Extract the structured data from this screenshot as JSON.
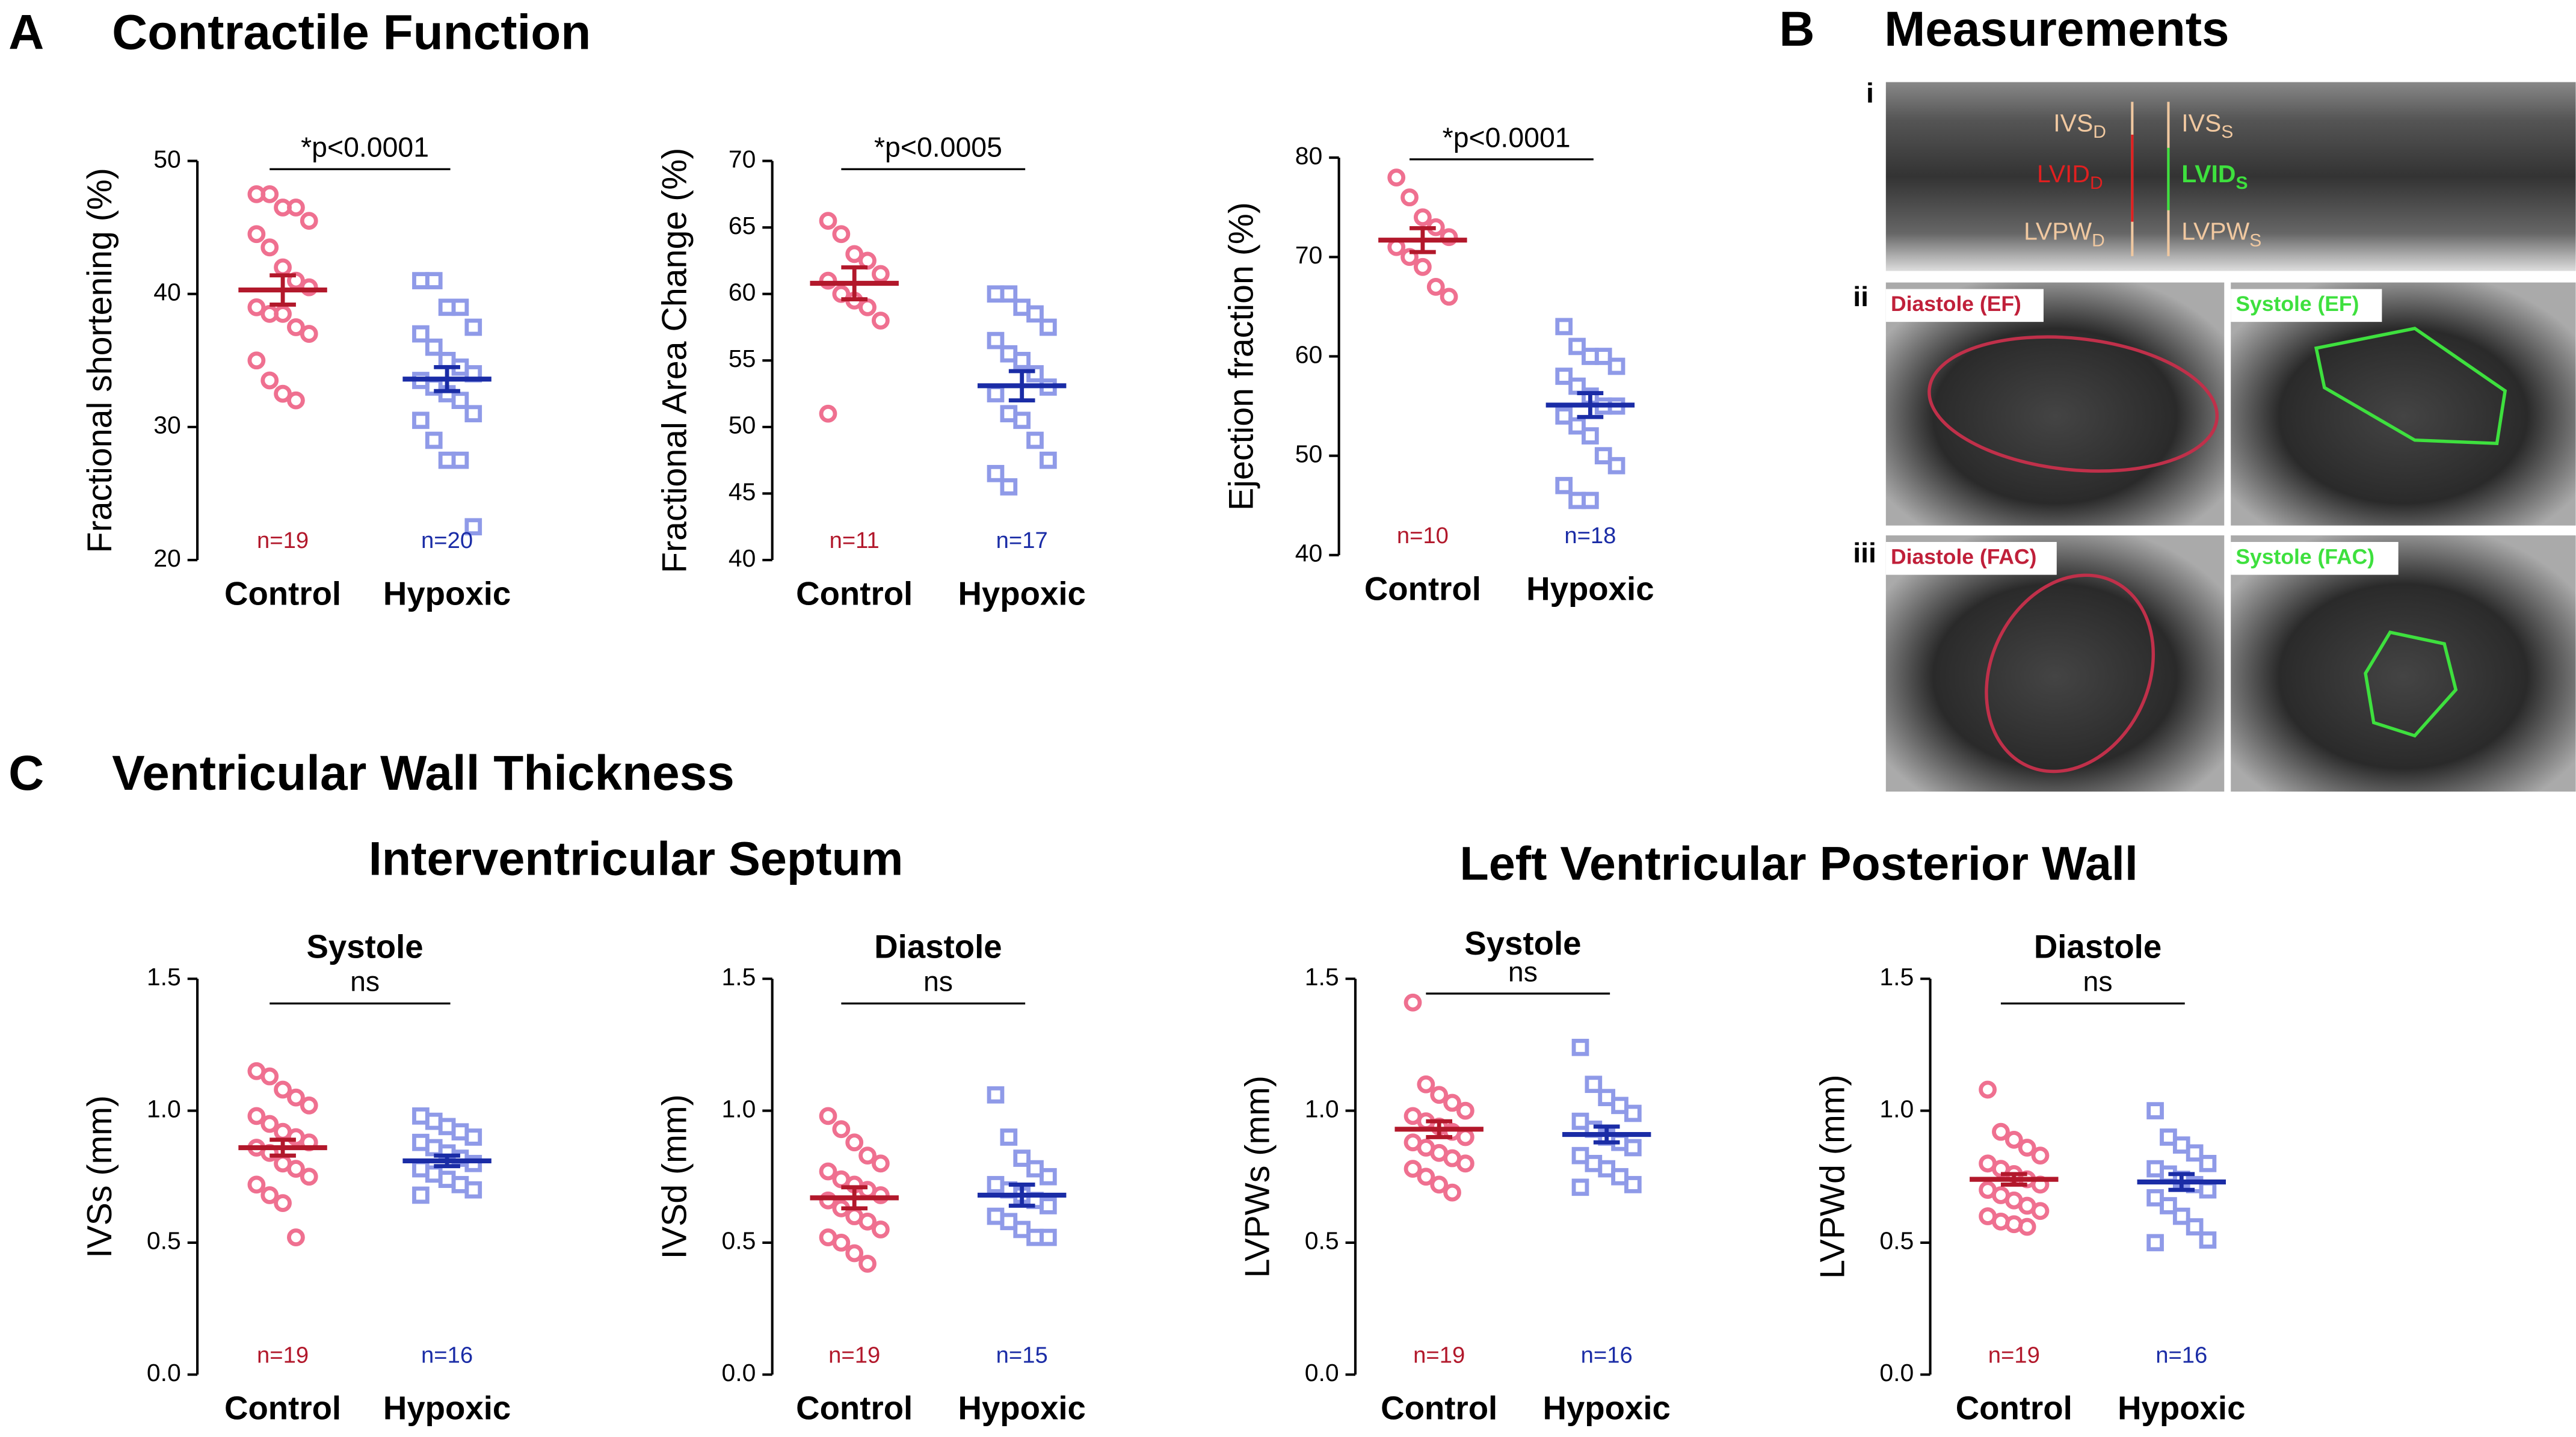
{
  "panels": [
    {
      "letter": "A",
      "title": "Contractile Function"
    },
    {
      "letter": "B",
      "title": "Measurements"
    },
    {
      "letter": "C",
      "title": "Ventricular Wall Thickness"
    }
  ],
  "section_titles": [
    "Interventricular Septum",
    "Left  Ventricular Posterior Wall"
  ],
  "measurements": {
    "roman": [
      "i",
      "ii",
      "iii"
    ],
    "mmode_labels": [
      {
        "text": "IVS",
        "sub": "D"
      },
      {
        "text": "LVID",
        "sub": "D"
      },
      {
        "text": "LVPW",
        "sub": "D"
      },
      {
        "text": "IVS",
        "sub": "S"
      },
      {
        "text": "LVID",
        "sub": "S"
      },
      {
        "text": "LVPW",
        "sub": "S"
      }
    ],
    "image_labels": [
      "Diastole (EF)",
      "Systole (EF)",
      "Diastole (FAC)",
      "Systole (FAC)"
    ]
  },
  "chart_data": [
    {
      "type": "strip",
      "y_label": "Fractional  shortening (%)",
      "annotation": "*p<0.0001",
      "categories": [
        "Control",
        "Hypoxic"
      ],
      "ylim": [
        20,
        50
      ],
      "yticks": [
        20,
        30,
        40,
        50
      ],
      "series": [
        {
          "color": "#ef7090",
          "marker": "circle",
          "mean_color": "#b2182b",
          "n_label": "n=19",
          "mean": 40.3,
          "sem": 1.1,
          "values": [
            47.5,
            47.5,
            46.5,
            46.5,
            45.5,
            44.5,
            43.5,
            42,
            41,
            40.5,
            39,
            38.5,
            38.5,
            37.5,
            37,
            35,
            33.5,
            32.5,
            32
          ]
        },
        {
          "color": "#8f9ae8",
          "marker": "square",
          "mean_color": "#1a2ca6",
          "n_label": "n=20",
          "mean": 33.6,
          "sem": 0.9,
          "values": [
            41,
            41,
            39,
            39,
            37.5,
            37,
            36,
            35,
            34.5,
            34,
            33.5,
            33,
            32.5,
            32,
            31,
            30.5,
            29,
            27.5,
            27.5,
            22.5
          ]
        }
      ]
    },
    {
      "type": "strip",
      "y_label": "Fractional Area  Change (%)",
      "annotation": "*p<0.0005",
      "categories": [
        "Control",
        "Hypoxic"
      ],
      "ylim": [
        40,
        70
      ],
      "yticks": [
        40,
        45,
        50,
        55,
        60,
        65,
        70
      ],
      "series": [
        {
          "color": "#ef7090",
          "marker": "circle",
          "mean_color": "#b2182b",
          "n_label": "n=11",
          "mean": 60.8,
          "sem": 1.2,
          "values": [
            65.5,
            64.5,
            63,
            62.5,
            61.5,
            61,
            60,
            59.5,
            59,
            58,
            51
          ]
        },
        {
          "color": "#8f9ae8",
          "marker": "square",
          "mean_color": "#1a2ca6",
          "n_label": "n=17",
          "mean": 53.1,
          "sem": 1.1,
          "values": [
            60,
            60,
            59,
            58.5,
            57.5,
            56.5,
            55.5,
            55,
            54,
            53,
            52.5,
            51,
            50.5,
            49,
            47.5,
            46.5,
            45.5
          ]
        }
      ]
    },
    {
      "type": "strip",
      "y_label": "Ejection fraction (%)",
      "annotation": "*p<0.0001",
      "categories": [
        "Control",
        "Hypoxic"
      ],
      "ylim": [
        40,
        80
      ],
      "yticks": [
        40,
        50,
        60,
        70,
        80
      ],
      "series": [
        {
          "color": "#ef7090",
          "marker": "circle",
          "mean_color": "#b2182b",
          "n_label": "n=10",
          "mean": 71.7,
          "sem": 1.2,
          "values": [
            78,
            76,
            74,
            73,
            72,
            71,
            70,
            69,
            67,
            66
          ]
        },
        {
          "color": "#8f9ae8",
          "marker": "square",
          "mean_color": "#1a2ca6",
          "n_label": "n=18",
          "mean": 55.1,
          "sem": 1.2,
          "values": [
            63,
            61,
            60,
            60,
            59,
            58,
            57,
            56,
            55,
            55,
            54,
            53,
            52,
            50,
            49,
            47,
            45.5,
            45.5
          ]
        }
      ]
    },
    {
      "type": "strip",
      "title": "Systole",
      "y_label": "IVSs (mm)",
      "annotation": "ns",
      "categories": [
        "Control",
        "Hypoxic"
      ],
      "ylim": [
        0,
        1.5
      ],
      "yticks": [
        {
          "value": 0,
          "label": "0.0"
        },
        0.5,
        {
          "value": 1,
          "label": "1.0"
        },
        1.5
      ],
      "series": [
        {
          "color": "#ef7090",
          "marker": "circle",
          "mean_color": "#b2182b",
          "n_label": "n=19",
          "mean": 0.86,
          "sem": 0.03,
          "values": [
            1.15,
            1.13,
            1.08,
            1.05,
            1.02,
            0.98,
            0.95,
            0.92,
            0.9,
            0.88,
            0.86,
            0.84,
            0.8,
            0.78,
            0.75,
            0.72,
            0.68,
            0.65,
            0.52
          ]
        },
        {
          "color": "#8f9ae8",
          "marker": "square",
          "mean_color": "#1a2ca6",
          "n_label": "n=16",
          "mean": 0.81,
          "sem": 0.02,
          "values": [
            0.98,
            0.96,
            0.94,
            0.92,
            0.9,
            0.88,
            0.86,
            0.84,
            0.82,
            0.8,
            0.78,
            0.76,
            0.74,
            0.72,
            0.7,
            0.68
          ]
        }
      ]
    },
    {
      "type": "strip",
      "title": "Diastole",
      "y_label": "IVSd  (mm)",
      "annotation": "ns",
      "categories": [
        "Control",
        "Hypoxic"
      ],
      "ylim": [
        0,
        1.5
      ],
      "yticks": [
        {
          "value": 0,
          "label": "0.0"
        },
        0.5,
        {
          "value": 1,
          "label": "1.0"
        },
        1.5
      ],
      "series": [
        {
          "color": "#ef7090",
          "marker": "circle",
          "mean_color": "#b2182b",
          "n_label": "n=19",
          "mean": 0.67,
          "sem": 0.04,
          "values": [
            0.98,
            0.93,
            0.88,
            0.83,
            0.8,
            0.77,
            0.74,
            0.72,
            0.7,
            0.68,
            0.66,
            0.63,
            0.6,
            0.58,
            0.55,
            0.52,
            0.5,
            0.46,
            0.42
          ]
        },
        {
          "color": "#8f9ae8",
          "marker": "square",
          "mean_color": "#1a2ca6",
          "n_label": "n=15",
          "mean": 0.68,
          "sem": 0.04,
          "values": [
            1.06,
            0.9,
            0.82,
            0.78,
            0.75,
            0.72,
            0.7,
            0.68,
            0.66,
            0.64,
            0.6,
            0.58,
            0.55,
            0.52,
            0.52
          ]
        }
      ]
    },
    {
      "type": "strip",
      "title": "Systole",
      "y_label": "LVPWs (mm)",
      "annotation": "ns",
      "categories": [
        "Control",
        "Hypoxic"
      ],
      "ylim": [
        0,
        1.5
      ],
      "yticks": [
        {
          "value": 0,
          "label": "0.0"
        },
        0.5,
        {
          "value": 1,
          "label": "1.0"
        },
        1.5
      ],
      "series": [
        {
          "color": "#ef7090",
          "marker": "circle",
          "mean_color": "#b2182b",
          "n_label": "n=19",
          "mean": 0.93,
          "sem": 0.03,
          "values": [
            1.41,
            1.1,
            1.06,
            1.03,
            1.0,
            0.98,
            0.96,
            0.94,
            0.92,
            0.9,
            0.88,
            0.86,
            0.84,
            0.82,
            0.8,
            0.78,
            0.75,
            0.72,
            0.69
          ]
        },
        {
          "color": "#8f9ae8",
          "marker": "square",
          "mean_color": "#1a2ca6",
          "n_label": "n=16",
          "mean": 0.91,
          "sem": 0.03,
          "values": [
            1.24,
            1.1,
            1.05,
            1.02,
            0.99,
            0.96,
            0.93,
            0.9,
            0.88,
            0.86,
            0.83,
            0.8,
            0.78,
            0.75,
            0.72,
            0.71
          ]
        }
      ]
    },
    {
      "type": "strip",
      "title": "Diastole",
      "y_label": "LVPWd (mm)",
      "annotation": "ns",
      "categories": [
        "Control",
        "Hypoxic"
      ],
      "ylim": [
        0,
        1.5
      ],
      "yticks": [
        {
          "value": 0,
          "label": "0.0"
        },
        0.5,
        {
          "value": 1,
          "label": "1.0"
        },
        1.5
      ],
      "series": [
        {
          "color": "#ef7090",
          "marker": "circle",
          "mean_color": "#b2182b",
          "n_label": "n=19",
          "mean": 0.74,
          "sem": 0.02,
          "values": [
            1.08,
            0.92,
            0.89,
            0.86,
            0.83,
            0.8,
            0.78,
            0.76,
            0.74,
            0.72,
            0.7,
            0.68,
            0.66,
            0.64,
            0.62,
            0.6,
            0.58,
            0.57,
            0.56
          ]
        },
        {
          "color": "#8f9ae8",
          "marker": "square",
          "mean_color": "#1a2ca6",
          "n_label": "n=16",
          "mean": 0.73,
          "sem": 0.03,
          "values": [
            1.0,
            0.9,
            0.87,
            0.84,
            0.8,
            0.78,
            0.76,
            0.74,
            0.72,
            0.7,
            0.67,
            0.64,
            0.6,
            0.56,
            0.51,
            0.5
          ]
        }
      ]
    }
  ]
}
